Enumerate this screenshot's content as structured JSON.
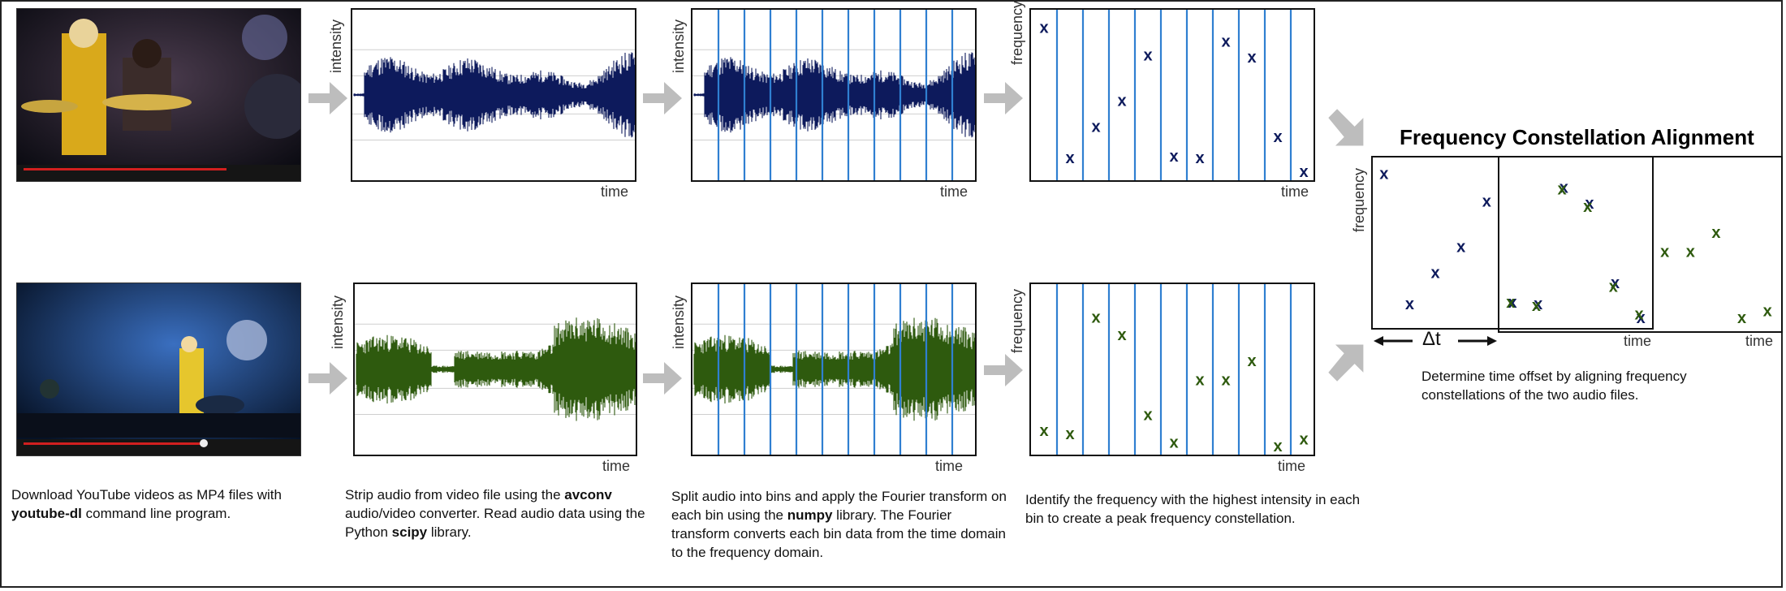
{
  "labels": {
    "intensity": "intensity",
    "frequency": "frequency",
    "time": "time",
    "x": "x"
  },
  "title": "Frequency Constellation Alignment",
  "delta": "Δt",
  "captions": {
    "step1": {
      "t1": "Download YouTube videos as MP4 files with ",
      "b1": "youtube-dl",
      "t2": " command line program."
    },
    "step2": {
      "t1": "Strip audio from video file using the ",
      "b1": "avconv",
      "t2": " audio/video converter. Read audio data using the Python ",
      "b2": "scipy",
      "t3": " library."
    },
    "step3": {
      "t1": "Split audio into bins and apply the Fourier transform on each bin using the ",
      "b1": "numpy",
      "t2": " library. The Fourier transform converts each bin data from the time domain to the frequency domain."
    },
    "step4": {
      "t1": "Identify the frequency with the highest intensity in each bin to create a peak frequency constellation."
    },
    "step5": {
      "t1": "Determine time offset by aligning frequency constellations of the two audio files."
    }
  },
  "colors": {
    "navy": "#0d1a5c",
    "green": "#2e5a0e",
    "bin_line": "#2f7fd1",
    "arrow": "#bdbdbd"
  },
  "constellations": {
    "top_peaks": [
      0.9,
      0.15,
      0.33,
      0.48,
      0.74,
      0.16,
      0.15,
      0.82,
      0.73,
      0.27,
      0.07
    ],
    "bottom_peaks": [
      0.16,
      0.14,
      0.81,
      0.71,
      0.25,
      0.09,
      0.45,
      0.45,
      0.56,
      0.07,
      0.11
    ]
  }
}
